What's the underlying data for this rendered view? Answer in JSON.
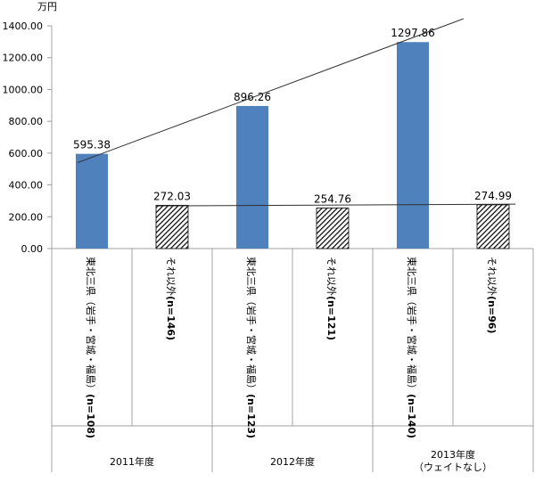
{
  "chart_data": {
    "type": "bar",
    "unit": "万円",
    "ylim": [
      0,
      1400
    ],
    "yticks": [
      "0.00",
      "200.00",
      "400.00",
      "600.00",
      "800.00",
      "1000.00",
      "1200.00",
      "1400.00"
    ],
    "grid": false,
    "legend": "none",
    "groups": [
      {
        "label": "2011年度",
        "sublabel": ""
      },
      {
        "label": "2012年度",
        "sublabel": ""
      },
      {
        "label": "2013年度",
        "sublabel": "（ウェイトなし）"
      }
    ],
    "bars": [
      {
        "group": 0,
        "label_main": "東北三県（岩手・宮城・福島）",
        "label_n": "(n=108)",
        "value": 595.38,
        "value_label": "595.38",
        "style": "solid"
      },
      {
        "group": 0,
        "label_main": "それ以外",
        "label_n": "(n=146)",
        "value": 272.03,
        "value_label": "272.03",
        "style": "hatched"
      },
      {
        "group": 1,
        "label_main": "東北三県（岩手・宮城・福島）",
        "label_n": "(n=123)",
        "value": 896.26,
        "value_label": "896.26",
        "style": "solid"
      },
      {
        "group": 1,
        "label_main": "それ以外",
        "label_n": "(n=121)",
        "value": 254.76,
        "value_label": "254.76",
        "style": "hatched"
      },
      {
        "group": 2,
        "label_main": "東北三県（岩手・宮城・福島）",
        "label_n": "(n=140)",
        "value": 1297.86,
        "value_label": "1297.86",
        "style": "solid"
      },
      {
        "group": 2,
        "label_main": "それ以外",
        "label_n": "(n=96)",
        "value": 274.99,
        "value_label": "274.99",
        "style": "hatched"
      }
    ],
    "trendlines": [
      {
        "series": "東北三県",
        "from": {
          "bar": 0,
          "value": 540
        },
        "to": {
          "bar": 4,
          "value": 1445
        }
      },
      {
        "series": "それ以外",
        "from": {
          "bar": 1,
          "value": 268
        },
        "to": {
          "bar": 5,
          "value": 279
        }
      }
    ],
    "colors": {
      "solid": "#4f81bd",
      "axis": "#a0a0a0",
      "trend": "#303030"
    }
  }
}
